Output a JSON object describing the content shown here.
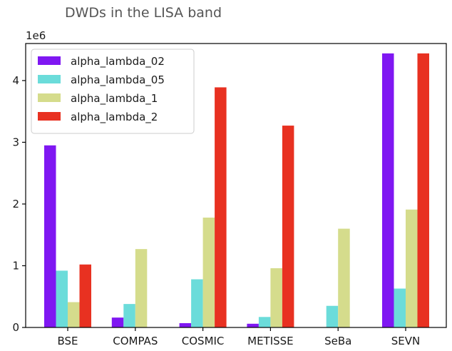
{
  "chart_data": {
    "type": "bar",
    "title": "DWDs in the LISA band",
    "scale_label": "1e6",
    "xlabel": "",
    "ylabel": "",
    "ylim": [
      0,
      4.6
    ],
    "yticks": [
      "0",
      "1",
      "2",
      "3",
      "4"
    ],
    "ytick_values": [
      0,
      1,
      2,
      3,
      4
    ],
    "categories": [
      "BSE",
      "COMPAS",
      "COSMIC",
      "METISSE",
      "SeBa",
      "SEVN"
    ],
    "grid": false,
    "legend_position": "top-left",
    "series": [
      {
        "name": "alpha_lambda_02",
        "color": "#7f17f2",
        "values": [
          2.95,
          0.16,
          0.07,
          0.06,
          0.005,
          4.44
        ]
      },
      {
        "name": "alpha_lambda_05",
        "color": "#6bdcda",
        "values": [
          0.92,
          0.38,
          0.78,
          0.17,
          0.35,
          0.63
        ]
      },
      {
        "name": "alpha_lambda_1",
        "color": "#d5dc8c",
        "values": [
          0.41,
          1.27,
          1.78,
          0.96,
          1.6,
          1.91
        ]
      },
      {
        "name": "alpha_lambda_2",
        "color": "#e83121",
        "values": [
          1.02,
          0.0,
          3.89,
          3.27,
          0.0,
          4.44
        ]
      }
    ]
  }
}
